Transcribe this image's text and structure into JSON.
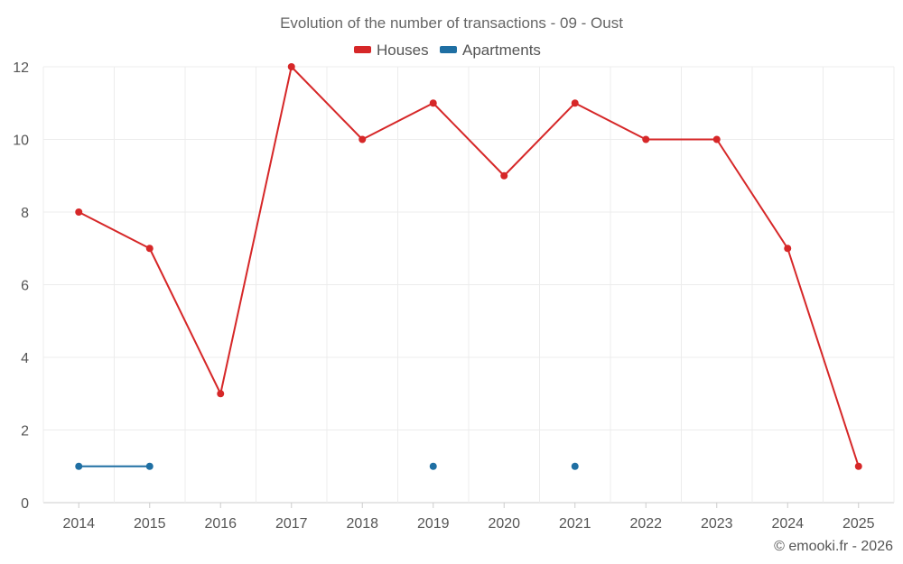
{
  "chart_data": {
    "type": "line",
    "title": "Evolution of the number of transactions - 09 - Oust",
    "categories": [
      "2014",
      "2015",
      "2016",
      "2017",
      "2018",
      "2019",
      "2020",
      "2021",
      "2022",
      "2023",
      "2024",
      "2025"
    ],
    "series": [
      {
        "name": "Houses",
        "color": "#d62728",
        "values": [
          8,
          7,
          3,
          12,
          10,
          11,
          9,
          11,
          10,
          10,
          7,
          1
        ]
      },
      {
        "name": "Apartments",
        "color": "#1f6fa3",
        "values": [
          1,
          1,
          null,
          null,
          null,
          1,
          null,
          1,
          null,
          null,
          null,
          null
        ]
      }
    ],
    "ylim": [
      0,
      12
    ],
    "yticks": [
      0,
      2,
      4,
      6,
      8,
      10,
      12
    ],
    "grid": true,
    "legend": "top-center",
    "xlabel": "",
    "ylabel": ""
  },
  "credit": "© emooki.fr - 2026"
}
